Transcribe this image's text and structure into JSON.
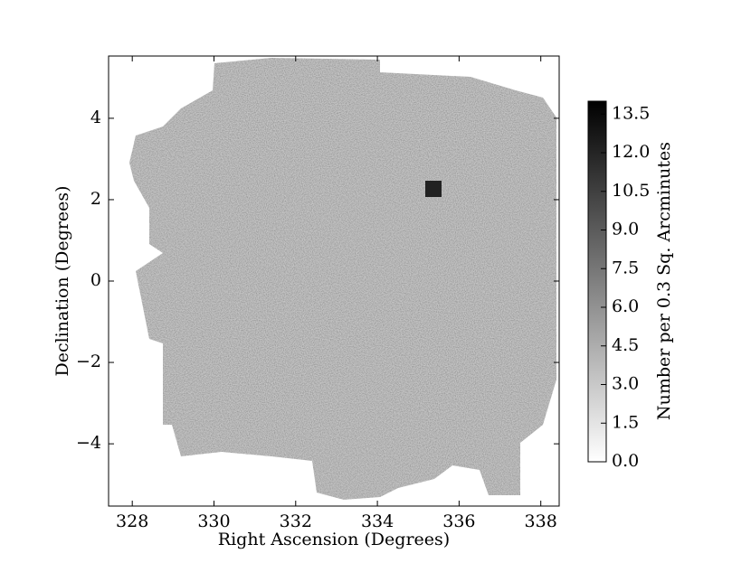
{
  "chart_data": {
    "type": "image",
    "xlabel": "Right Ascension (Degrees)",
    "ylabel": "Declination (Degrees)",
    "xlim": [
      327.42,
      338.45
    ],
    "ylim": [
      -5.53,
      5.53
    ],
    "xticks": [
      328,
      330,
      332,
      334,
      336,
      338
    ],
    "yticks": [
      {
        "value": -4,
        "label": "−4"
      },
      {
        "value": -2,
        "label": "−2"
      },
      0,
      2,
      4
    ],
    "colorbar": {
      "label": "Number per 0.3 Sq. Arcminutes",
      "clim": [
        0,
        14
      ],
      "colormap": [
        "#ffffff",
        "#000000"
      ],
      "ticks": [
        {
          "value": 0,
          "label": "0.0"
        },
        1.5,
        {
          "value": 3,
          "label": "3.0"
        },
        4.5,
        {
          "value": 6,
          "label": "6.0"
        },
        7.5,
        {
          "value": 9,
          "label": "9.0"
        },
        10.5,
        {
          "value": 12,
          "label": "12.0"
        },
        13.5
      ]
    }
  }
}
